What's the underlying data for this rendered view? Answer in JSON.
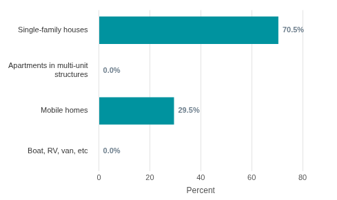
{
  "chart_data": {
    "type": "bar",
    "orientation": "horizontal",
    "categories": [
      "Single-family houses",
      "Apartments in multi-unit structures",
      "Mobile homes",
      "Boat, RV, van, etc"
    ],
    "values": [
      70.5,
      0.0,
      29.5,
      0.0
    ],
    "value_labels": [
      "70.5%",
      "0.0%",
      "29.5%",
      "0.0%"
    ],
    "data_labels": true,
    "color": "#00939f",
    "xlabel": "Percent",
    "xlim": [
      0,
      80
    ],
    "xticks": [
      0,
      20,
      40,
      60,
      80
    ],
    "grid": true
  }
}
